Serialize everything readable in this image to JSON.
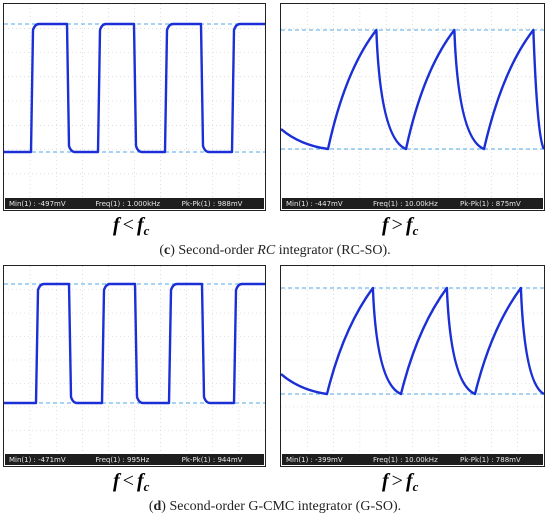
{
  "figure_c": {
    "caption_letter": "c",
    "caption_pre": "Second-order ",
    "caption_italic": "RC",
    "caption_post": " integrator (RC-SO).",
    "left_label": {
      "f": "f",
      "op": "<",
      "fc": "f",
      "sub": "c"
    },
    "right_label": {
      "f": "f",
      "op": ">",
      "fc": "f",
      "sub": "c"
    },
    "left_scope": {
      "min": "Min(1) : -497mV",
      "freq": "Freq(1) : 1.000kHz",
      "pkpk": "Pk-Pk(1) : 988mV"
    },
    "right_scope": {
      "min": "Min(1) : -447mV",
      "freq": "Freq(1) : 10.00kHz",
      "pkpk": "Pk-Pk(1) : 875mV"
    }
  },
  "figure_d": {
    "caption_letter": "d",
    "caption_pre": "Second-order G-CMC integrator (G-SO).",
    "left_label": {
      "f": "f",
      "op": "<",
      "fc": "f",
      "sub": "c"
    },
    "right_label": {
      "f": "f",
      "op": ">",
      "fc": "f",
      "sub": "c"
    },
    "left_scope": {
      "min": "Min(1) : -471mV",
      "freq": "Freq(1) : 995Hz",
      "pkpk": "Pk-Pk(1) : 944mV"
    },
    "right_scope": {
      "min": "Min(1) : -399mV",
      "freq": "Freq(1) : 10.00kHz",
      "pkpk": "Pk-Pk(1) : 788mV"
    }
  },
  "colors": {
    "trace": "#1a2fd6",
    "cursor": "#4ea9e6",
    "grid": "#c9c9c9",
    "statusbar": "#1e1e1e"
  }
}
